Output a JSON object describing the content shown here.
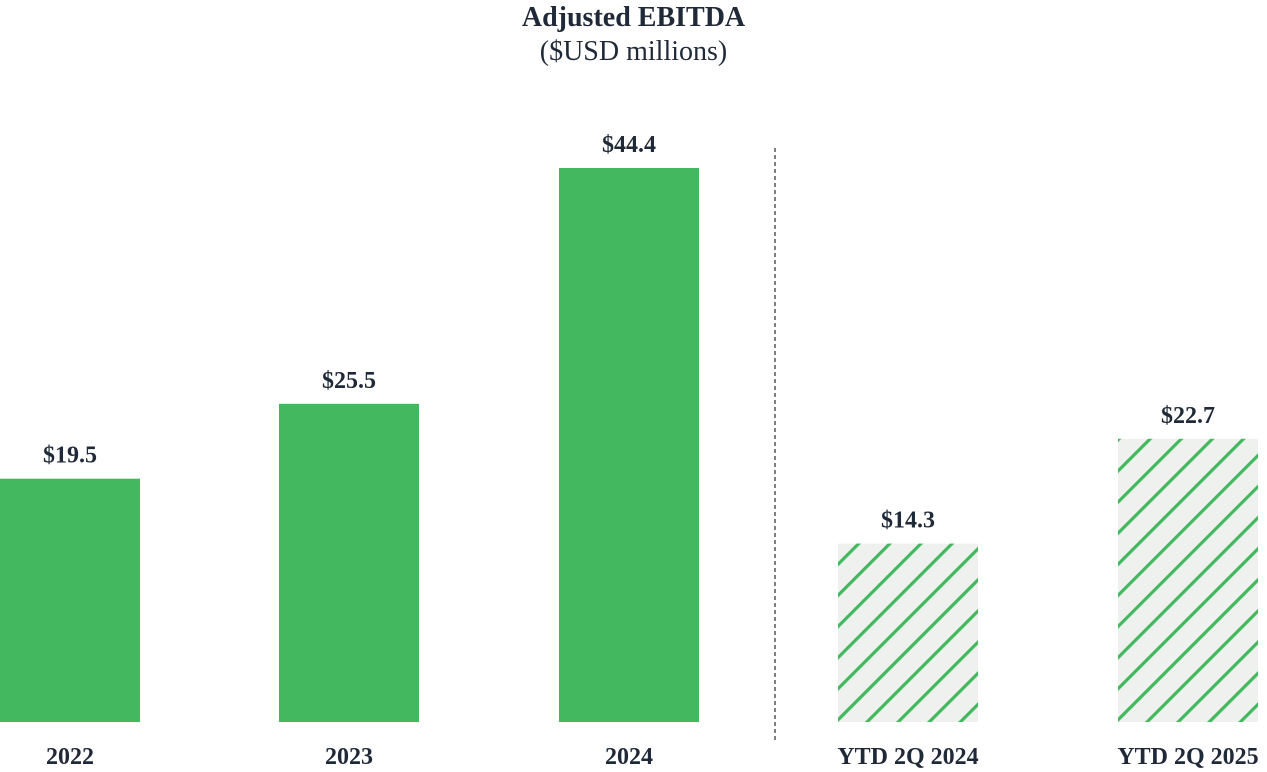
{
  "chart_data": {
    "type": "bar",
    "title": "Adjusted EBITDA",
    "subtitle": "($USD millions)",
    "categories": [
      "2022",
      "2023",
      "2024",
      "YTD 2Q 2024",
      "YTD 2Q 2025"
    ],
    "values": [
      19.5,
      25.5,
      44.4,
      14.3,
      22.7
    ],
    "value_labels": [
      "$19.5",
      "$25.5",
      "$44.4",
      "$14.3",
      "$22.7"
    ],
    "bar_styles": [
      "solid",
      "solid",
      "solid",
      "hatched",
      "hatched"
    ],
    "ylim": [
      0,
      44.4
    ],
    "grid": false,
    "legend": "none",
    "divider": "dashed vertical line between 2024 and YTD 2Q 2024",
    "colors": {
      "bar": "#43b85f",
      "hatch_background": "#eef1ee",
      "text": "#1f2937",
      "divider": "#555555"
    }
  }
}
